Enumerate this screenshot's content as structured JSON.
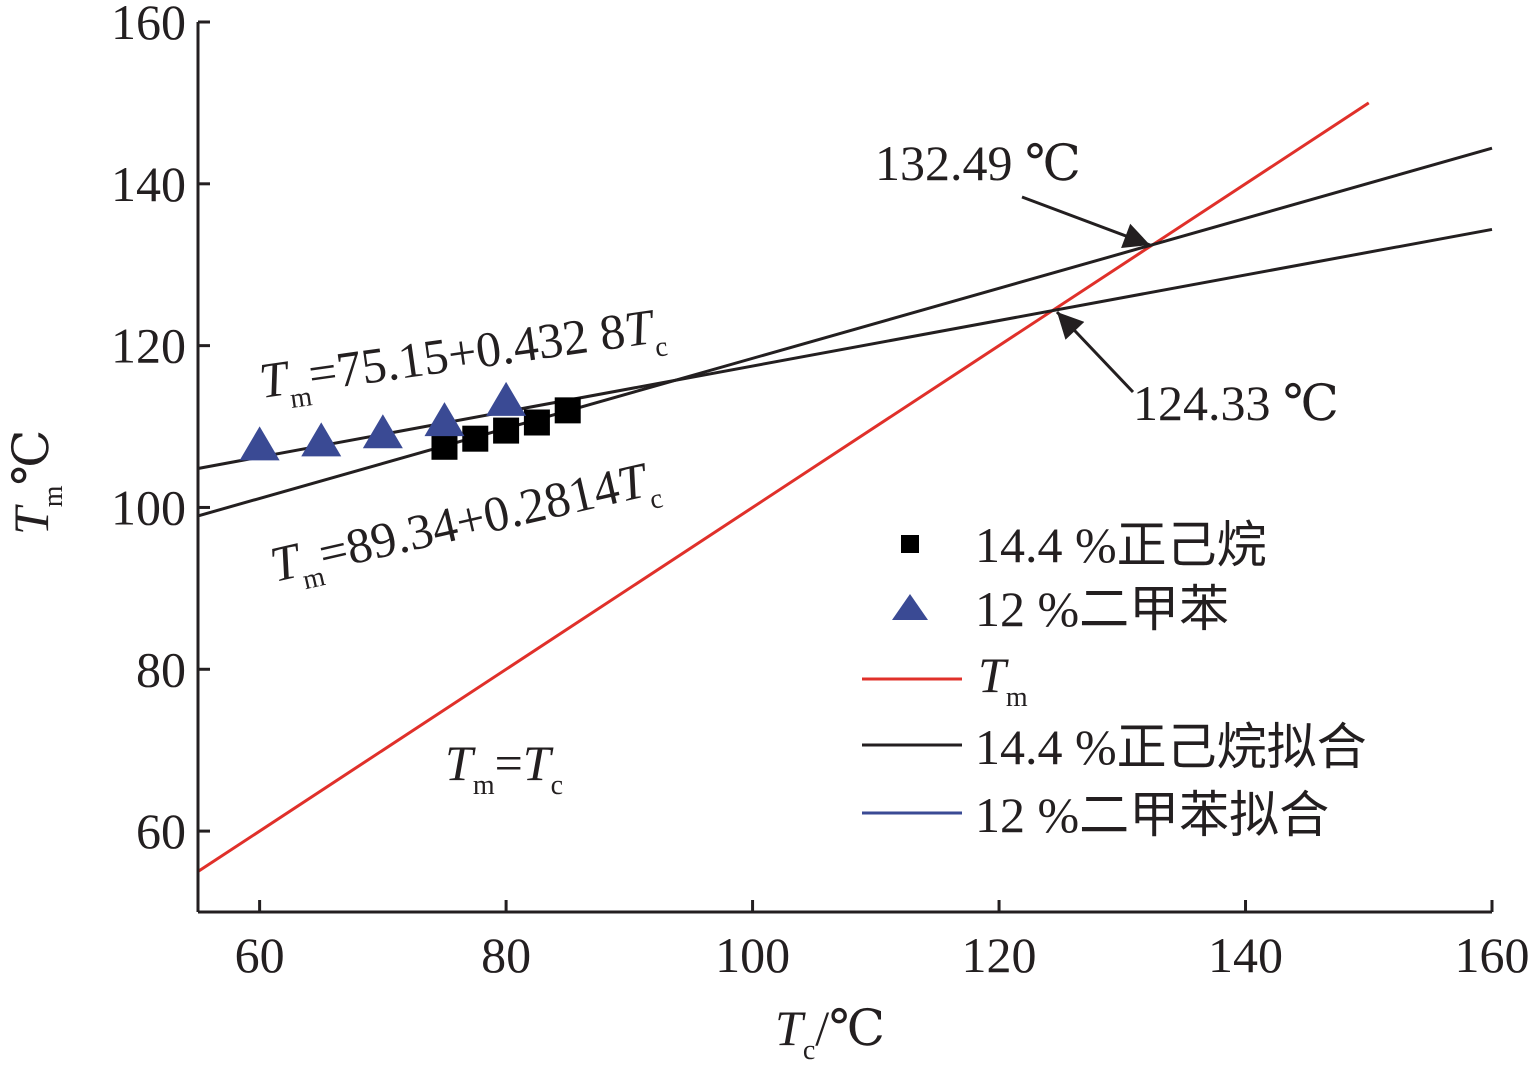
{
  "chart_data": {
    "type": "scatter",
    "xlabel": {
      "symbol": "T",
      "sub": "c",
      "unit": "/℃"
    },
    "ylabel": {
      "symbol": "T",
      "sub": "m",
      "unit": "℃"
    },
    "xlim": [
      55,
      160
    ],
    "ylim": [
      50,
      160
    ],
    "xticks": [
      60,
      80,
      100,
      120,
      140,
      160
    ],
    "yticks": [
      60,
      80,
      100,
      120,
      140,
      160
    ],
    "x_tick_labels": [
      "60",
      "80",
      "100",
      "120",
      "140",
      "160"
    ],
    "y_tick_labels": [
      "60",
      "80",
      "100",
      "120",
      "140",
      "160"
    ],
    "grid": false,
    "legend_position": "right",
    "scatter_series": [
      {
        "name": "14.4 %正己烷",
        "marker": "square",
        "color": "#000000",
        "points": [
          [
            75,
            107.5
          ],
          [
            77.5,
            108.5
          ],
          [
            80,
            109.5
          ],
          [
            82.5,
            110.5
          ],
          [
            85,
            112
          ]
        ]
      },
      {
        "name": "12 %二甲苯",
        "marker": "triangle",
        "color": "#3a4a94",
        "points": [
          [
            60,
            107.5
          ],
          [
            65,
            108
          ],
          [
            70,
            109
          ],
          [
            75,
            110.5
          ],
          [
            80,
            113
          ]
        ]
      }
    ],
    "line_series": [
      {
        "name": "T",
        "name_sub": "m",
        "color": "#e0302a",
        "intercept": 0,
        "slope": 1,
        "x_range": [
          55,
          150
        ]
      },
      {
        "name": "14.4 %正己烷拟合",
        "color": "#231f20",
        "intercept": 75.15,
        "slope": 0.4328,
        "x_range": [
          55,
          160
        ]
      },
      {
        "name": "12 %二甲苯拟合",
        "color": "#3a4a94",
        "legend_only": true
      },
      {
        "name": "",
        "color": "#231f20",
        "intercept": 89.34,
        "slope": 0.2814,
        "x_range": [
          55,
          160
        ]
      }
    ],
    "annotations": {
      "eq1": {
        "T": "T",
        "sub": "m",
        "body": "=75.15+0.432 8",
        "T2": "T",
        "sub2": "c"
      },
      "eq2": {
        "T": "T",
        "sub": "m",
        "body": "=89.34+0.2814",
        "T2": "T",
        "sub2": "c"
      },
      "eq3": {
        "T": "T",
        "sub": "m",
        "body": "=",
        "T2": "T",
        "sub2": "c"
      },
      "intersect1": {
        "label": "132.49 ℃",
        "x": 132.49,
        "y": 132.49
      },
      "intersect2": {
        "label": "124.33 ℃",
        "x": 124.33,
        "y": 124.33
      }
    }
  }
}
